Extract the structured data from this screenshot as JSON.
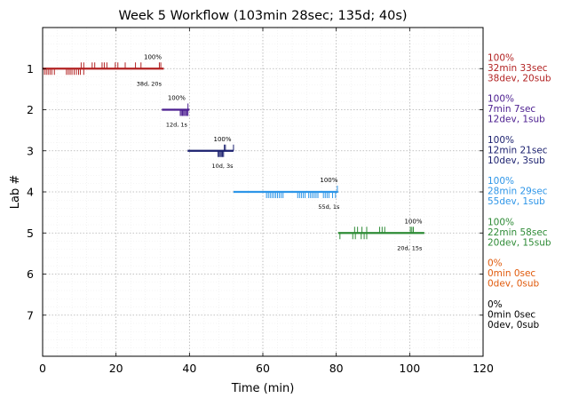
{
  "chart_data": {
    "type": "timeline",
    "title": "Week 5 Workflow (103min 28sec; 135d; 40s)",
    "xlabel": "Time (min)",
    "ylabel": "Lab #",
    "xlim": [
      0,
      120
    ],
    "ylim": [
      8,
      0
    ],
    "x_ticks": [
      "0",
      "20",
      "40",
      "60",
      "80",
      "100",
      "120"
    ],
    "y_ticks": [
      "1",
      "2",
      "3",
      "4",
      "5",
      "6",
      "7"
    ],
    "grid": true,
    "labs": [
      {
        "lab": 1,
        "color": "#b22222",
        "start": 0,
        "end": 33,
        "pct_label": "100%",
        "pct_x": 30,
        "count_label": "38d, 20s",
        "count_x": 29,
        "legend": [
          "100%",
          "32min 33sec",
          "38dev, 20sub"
        ],
        "dev_ticks": [
          0.5,
          1.0,
          1.5,
          2.0,
          2.5,
          3.2,
          6.5,
          7.0,
          7.5,
          8.0,
          8.6,
          9.2,
          9.8,
          10.3,
          11.2
        ],
        "sub_ticks": [
          10.5,
          11.2,
          13.5,
          14.2,
          16.2,
          16.8,
          17.5,
          19.8,
          20.5,
          22.5,
          25.3,
          26.8,
          31.8,
          32.2
        ]
      },
      {
        "lab": 2,
        "color": "#4b1d8f",
        "start": 32.5,
        "end": 40,
        "pct_label": "100%",
        "pct_x": 36.5,
        "count_label": "12d, 1s",
        "count_x": 36.5,
        "legend": [
          "100%",
          "7min 7sec",
          "12dev, 1sub"
        ],
        "dev_ticks": [
          37.5,
          37.8,
          38.1,
          38.4,
          38.7,
          39.0,
          39.3,
          39.6
        ],
        "sub_ticks": [
          39.6
        ]
      },
      {
        "lab": 3,
        "color": "#1a1f6e",
        "start": 39.5,
        "end": 52,
        "pct_label": "100%",
        "pct_x": 49,
        "count_label": "10d, 3s",
        "count_x": 49,
        "legend": [
          "100%",
          "12min 21sec",
          "10dev, 3sub"
        ],
        "dev_ticks": [
          47.8,
          48.1,
          48.4,
          48.7,
          49.0,
          49.3
        ],
        "sub_ticks": [
          49.5,
          49.8,
          52.0
        ]
      },
      {
        "lab": 4,
        "color": "#2e96e8",
        "start": 52,
        "end": 80.5,
        "pct_label": "100%",
        "pct_x": 78,
        "count_label": "55d, 1s",
        "count_x": 78,
        "legend": [
          "100%",
          "28min 29sec",
          "55dev, 1sub"
        ],
        "dev_ticks": [
          61.0,
          61.5,
          62.0,
          62.5,
          63.0,
          63.5,
          64.0,
          64.5,
          65.0,
          65.5,
          69.5,
          70.0,
          70.5,
          71.0,
          71.5,
          72.5,
          73.0,
          73.5,
          74.0,
          74.5,
          75.0,
          76.5,
          77.0,
          77.5,
          78.0,
          79.0,
          79.8
        ],
        "sub_ticks": [
          80.3
        ]
      },
      {
        "lab": 5,
        "color": "#2e8b36",
        "start": 80.5,
        "end": 104,
        "pct_label": "100%",
        "pct_x": 101,
        "count_label": "20d, 15s",
        "count_x": 100,
        "legend": [
          "100%",
          "22min 58sec",
          "20dev, 15sub"
        ],
        "dev_ticks": [
          81.0,
          84.5,
          85.2,
          86.8,
          87.6,
          88.3
        ],
        "sub_ticks": [
          85.0,
          85.8,
          87.0,
          88.3,
          91.8,
          92.5,
          93.2,
          100.2,
          100.6,
          101.0
        ]
      },
      {
        "lab": 6,
        "color": "#e05a0c",
        "start": null,
        "end": null,
        "legend": [
          "0%",
          "0min 0sec",
          "0dev, 0sub"
        ],
        "dev_ticks": [],
        "sub_ticks": []
      },
      {
        "lab": 7,
        "color": "#000000",
        "start": null,
        "end": null,
        "legend": [
          "0%",
          "0min 0sec",
          "0dev, 0sub"
        ],
        "dev_ticks": [],
        "sub_ticks": []
      }
    ]
  }
}
